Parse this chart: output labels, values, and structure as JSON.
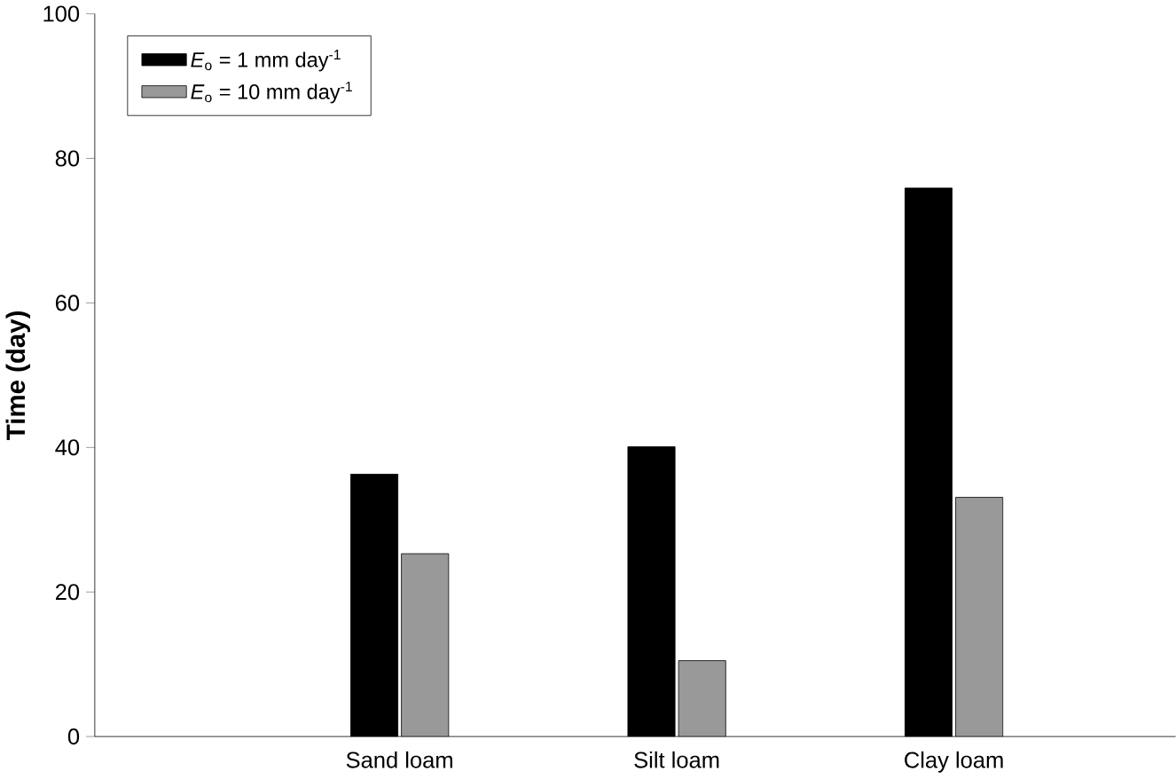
{
  "chart_data": {
    "type": "bar",
    "ylabel": "Time (day)",
    "categories": [
      "Sand loam",
      "Silt loam",
      "Clay loam"
    ],
    "series": [
      {
        "name": "*E*$_{o}$ = 1 mm day$^{-1}$",
        "color": "#000000",
        "values": [
          36.3,
          40.1,
          75.9
        ]
      },
      {
        "name": "*E*$_{o}$ = 10 mm day$^{-1}$",
        "color": "#999999",
        "values": [
          25.3,
          10.5,
          33.1
        ]
      }
    ],
    "ylim": [
      0,
      100
    ],
    "yticks": [
      0,
      20,
      40,
      60,
      80,
      100
    ],
    "grid": false,
    "legend": "top left"
  }
}
